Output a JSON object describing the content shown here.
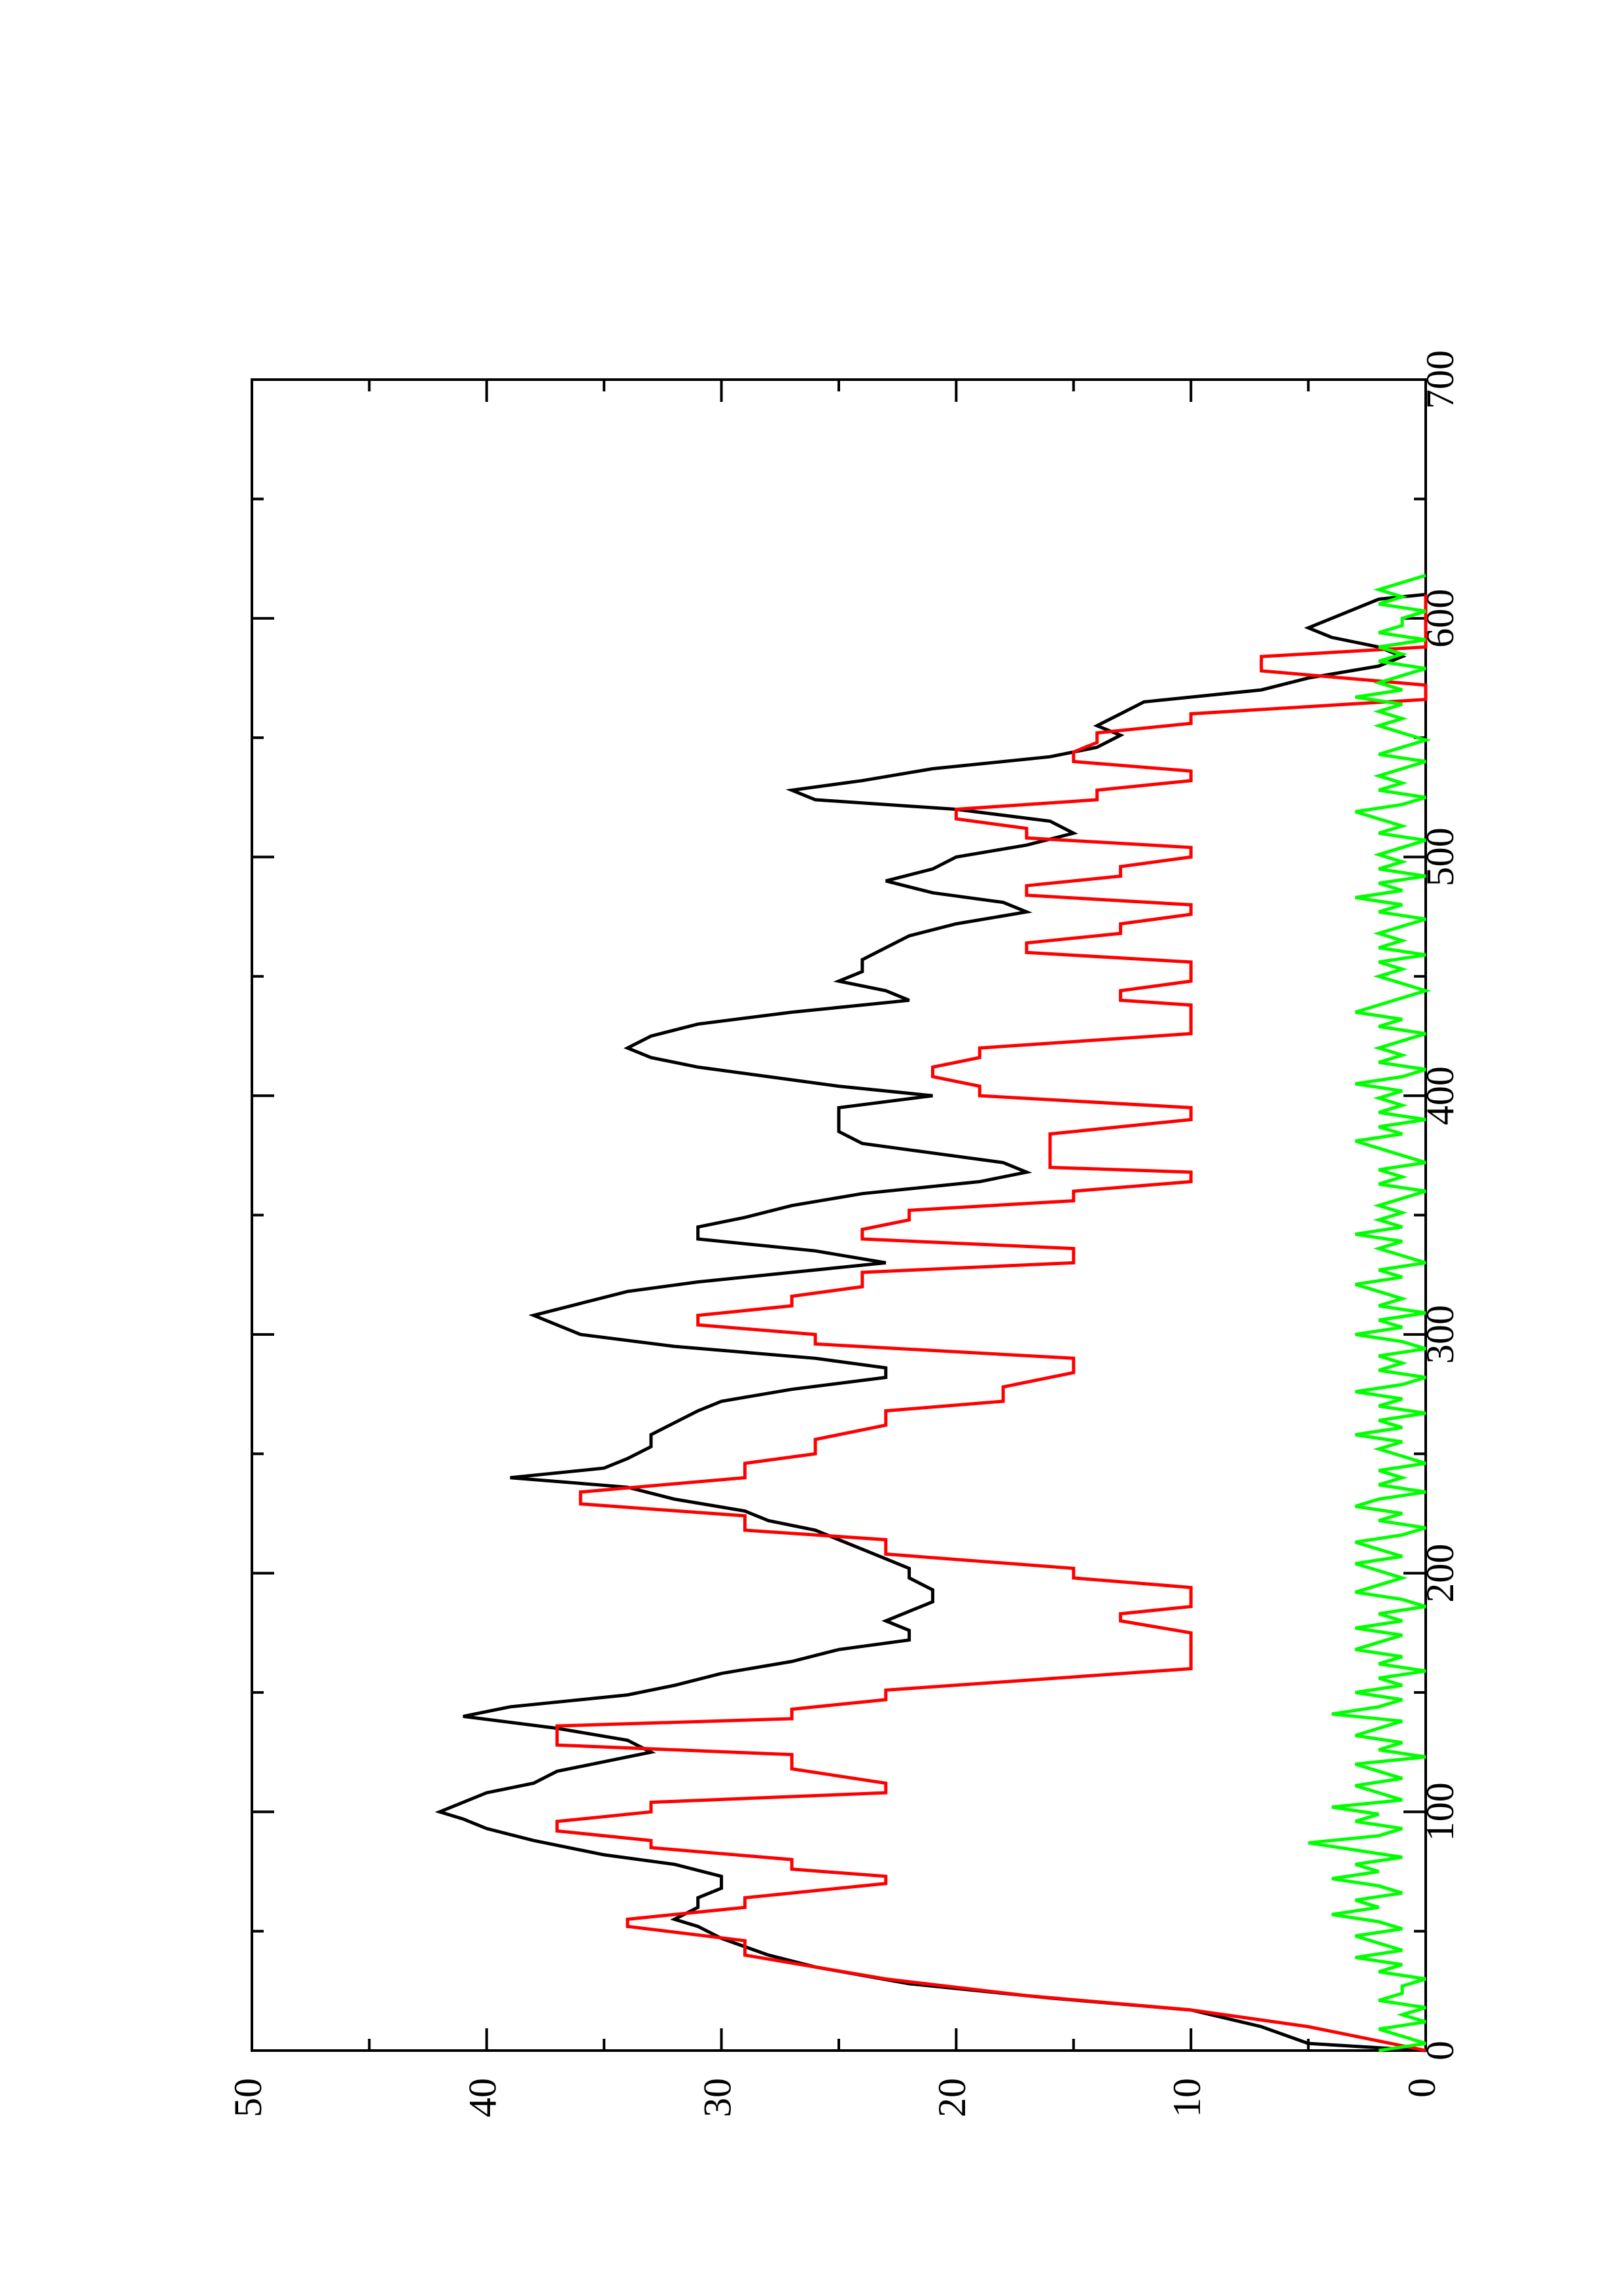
{
  "chart_data": {
    "type": "line",
    "orientation": "rotated-90-ccw",
    "title": "",
    "xlabel": "",
    "ylabel": "",
    "xlim": [
      0,
      700
    ],
    "ylim": [
      0,
      50
    ],
    "x_ticks": [
      0,
      100,
      200,
      300,
      400,
      500,
      600,
      700
    ],
    "x_minor_ticks": [
      50,
      150,
      250,
      350,
      450,
      550,
      650
    ],
    "y_ticks": [
      0,
      10,
      20,
      30,
      40,
      50
    ],
    "y_minor_ticks": [
      5,
      15,
      25,
      35,
      45
    ],
    "x_tick_labels": [
      "0",
      "100",
      "200",
      "300",
      "400",
      "500",
      "600",
      "700"
    ],
    "y_tick_labels": [
      "0",
      "10",
      "20",
      "30",
      "40",
      "50"
    ],
    "grid": false,
    "legend": "none",
    "series": [
      {
        "color": "#000000",
        "x": [
          0,
          3,
          10,
          17,
          22,
          28,
          35,
          40,
          47,
          52,
          55,
          60,
          64,
          68,
          73,
          78,
          82,
          88,
          93,
          97,
          100,
          104,
          108,
          112,
          117,
          121,
          125,
          130,
          135,
          140,
          144,
          149,
          153,
          158,
          163,
          168,
          172,
          176,
          180,
          184,
          188,
          193,
          198,
          202,
          206,
          210,
          214,
          218,
          222,
          226,
          231,
          236,
          240,
          244,
          248,
          253,
          258,
          263,
          268,
          272,
          277,
          282,
          286,
          290,
          295,
          300,
          304,
          308,
          313,
          318,
          322,
          326,
          330,
          335,
          340,
          345,
          349,
          354,
          359,
          364,
          368,
          372,
          376,
          380,
          385,
          390,
          395,
          400,
          404,
          408,
          412,
          416,
          420,
          425,
          430,
          435,
          440,
          444,
          448,
          452,
          457,
          462,
          467,
          472,
          477,
          481,
          485,
          490,
          495,
          500,
          505,
          510,
          515,
          520,
          524,
          528,
          532,
          537,
          542,
          546,
          551,
          555,
          560,
          565,
          570,
          575,
          580,
          584,
          588,
          592,
          596,
          600,
          604,
          608,
          610
        ],
        "y": [
          0,
          5,
          7,
          10,
          16,
          22,
          26,
          28,
          30,
          31,
          32,
          31,
          31,
          30,
          30,
          32,
          35,
          38,
          40,
          41,
          42,
          41,
          40,
          38,
          37,
          35,
          33,
          34,
          37,
          41,
          39,
          34,
          32,
          30,
          27,
          25,
          22,
          22,
          23,
          22,
          21,
          21,
          22,
          22,
          23,
          24,
          25,
          26,
          28,
          29,
          32,
          34,
          39,
          35,
          34,
          33,
          33,
          32,
          31,
          30,
          27,
          23,
          23,
          26,
          32,
          36,
          37,
          38,
          36,
          34,
          31,
          27,
          23,
          26,
          31,
          31,
          29,
          27,
          24,
          19,
          17,
          18,
          21,
          24,
          25,
          25,
          25,
          21,
          25,
          28,
          31,
          33,
          34,
          33,
          31,
          27,
          22,
          23,
          25,
          24,
          24,
          23,
          22,
          20,
          17,
          18,
          21,
          23,
          21,
          20,
          17,
          15,
          16,
          20,
          26,
          27,
          24,
          21,
          16,
          14,
          13,
          14,
          13,
          12,
          7,
          5,
          2,
          1,
          2,
          4,
          5,
          4,
          3,
          2,
          0
        ]
      },
      {
        "color": "#ff0000",
        "x": [
          0,
          10,
          17,
          23,
          30,
          40,
          46,
          52,
          55,
          60,
          64,
          70,
          73,
          76,
          80,
          85,
          88,
          92,
          96,
          100,
          104,
          108,
          112,
          118,
          124,
          128,
          136,
          139,
          143,
          147,
          151,
          160,
          169,
          175,
          180,
          183,
          186,
          190,
          194,
          198,
          202,
          208,
          214,
          218,
          224,
          229,
          234,
          240,
          246,
          250,
          256,
          262,
          268,
          272,
          278,
          284,
          290,
          296,
          300,
          304,
          308,
          312,
          316,
          320,
          326,
          330,
          336,
          340,
          344,
          348,
          352,
          356,
          360,
          364,
          368,
          370,
          374,
          380,
          384,
          390,
          395,
          400,
          404,
          408,
          412,
          416,
          420,
          426,
          432,
          438,
          440,
          444,
          448,
          452,
          456,
          460,
          464,
          468,
          472,
          476,
          480,
          484,
          488,
          492,
          496,
          500,
          504,
          508,
          512,
          516,
          520,
          524,
          528,
          532,
          536,
          540,
          544,
          548,
          552,
          556,
          560,
          566,
          572,
          578,
          584,
          588,
          594,
          600,
          604,
          610
        ],
        "y": [
          0,
          5,
          10,
          17,
          23,
          29,
          29,
          34,
          34,
          29,
          29,
          23,
          23,
          27,
          27,
          33,
          33,
          37,
          37,
          33,
          33,
          23,
          23,
          27,
          27,
          37,
          37,
          27,
          27,
          23,
          23,
          10,
          10,
          10,
          13,
          13,
          10,
          10,
          10,
          15,
          15,
          23,
          23,
          29,
          29,
          36,
          36,
          29,
          29,
          26,
          26,
          23,
          23,
          18,
          18,
          15,
          15,
          26,
          26,
          31,
          31,
          27,
          27,
          24,
          24,
          15,
          15,
          24,
          24,
          22,
          22,
          15,
          15,
          10,
          10,
          16,
          16,
          16,
          16,
          10,
          10,
          19,
          19,
          21,
          21,
          19,
          19,
          10,
          10,
          10,
          13,
          13,
          10,
          10,
          10,
          17,
          17,
          13,
          13,
          10,
          10,
          17,
          17,
          13,
          13,
          10,
          10,
          17,
          17,
          20,
          20,
          14,
          14,
          10,
          10,
          15,
          15,
          14,
          14,
          10,
          10,
          0,
          0,
          7,
          7,
          0,
          0,
          0,
          0,
          0
        ]
      },
      {
        "color": "#00ff00",
        "x_start": 0,
        "x_step": 3,
        "y": [
          2,
          0,
          1,
          2,
          0,
          1,
          0,
          2,
          1,
          1,
          0,
          2,
          1,
          3,
          1,
          2,
          3,
          1,
          2,
          4,
          2,
          3,
          1,
          2,
          4,
          2,
          3,
          1,
          3,
          5,
          2,
          1,
          3,
          2,
          4,
          1,
          2,
          3,
          1,
          2,
          3,
          0,
          2,
          1,
          3,
          2,
          1,
          4,
          2,
          1,
          3,
          1,
          2,
          0,
          2,
          1,
          3,
          2,
          1,
          3,
          1,
          2,
          0,
          1,
          3,
          2,
          1,
          2,
          3,
          1,
          2,
          3,
          1,
          0,
          2,
          1,
          3,
          2,
          0,
          2,
          1,
          2,
          0,
          1,
          2,
          1,
          3,
          1,
          2,
          0,
          2,
          1,
          3,
          1,
          0,
          2,
          1,
          2,
          0,
          1,
          3,
          1,
          2,
          0,
          2,
          1,
          2,
          3,
          1,
          2,
          0,
          1,
          2,
          1,
          3,
          1,
          2,
          1,
          2,
          1,
          0,
          2,
          1,
          2,
          0,
          1,
          2,
          3,
          1,
          2,
          0,
          2,
          1,
          2,
          1,
          3,
          1,
          0,
          2,
          1,
          2,
          1,
          0,
          2,
          1,
          3,
          2,
          1,
          0,
          1,
          2,
          1,
          2,
          0,
          2,
          1,
          2,
          1,
          0,
          2,
          1,
          3,
          1,
          2,
          0,
          2,
          1,
          2,
          1,
          0,
          2,
          1,
          2,
          3,
          1,
          0,
          2,
          1,
          2,
          1,
          0,
          2,
          1,
          0,
          1,
          2,
          1,
          2,
          1,
          3,
          1,
          2,
          1,
          0,
          2,
          1,
          2,
          0,
          2,
          1,
          1,
          0,
          2,
          1,
          2,
          1,
          0
        ]
      }
    ]
  }
}
